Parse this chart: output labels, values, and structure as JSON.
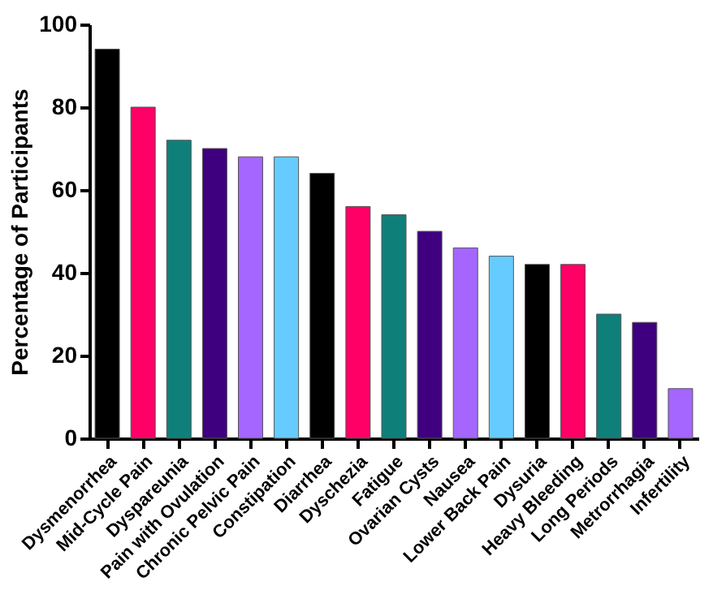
{
  "chart_data": {
    "type": "bar",
    "ylabel": "Percentage of Participants",
    "categories": [
      "Dysmenorrhea",
      "Mid-Cycle Pain",
      "Dyspareunia",
      "Pain with Ovulation",
      "Chronic Pelvic Pain",
      "Constipation",
      "Diarrhea",
      "Dyschezia",
      "Fatigue",
      "Ovarian Cysts",
      "Nausea",
      "Lower Back Pain",
      "Dysuria",
      "Heavy Bleeding",
      "Long Periods",
      "Metrorrhagia",
      "Infertility"
    ],
    "values": [
      94,
      80,
      72,
      70,
      68,
      68,
      64,
      56,
      54,
      50,
      46,
      44,
      42,
      42,
      30,
      28,
      12
    ],
    "colors": [
      "#000000",
      "#ff0066",
      "#0f7f7a",
      "#3f007f",
      "#a566ff",
      "#66ccff",
      "#000000",
      "#ff0066",
      "#0f7f7a",
      "#3f007f",
      "#a566ff",
      "#66ccff",
      "#000000",
      "#ff0066",
      "#0f7f7a",
      "#3f007f",
      "#a566ff"
    ],
    "ylim": [
      0,
      100
    ],
    "yticks": [
      0,
      20,
      40,
      60,
      80,
      100
    ],
    "grid": false
  }
}
